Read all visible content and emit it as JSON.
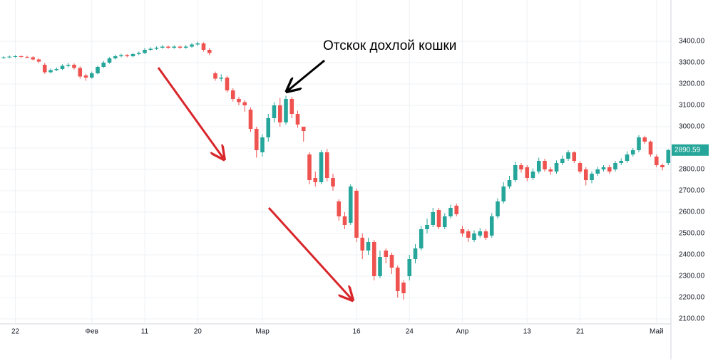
{
  "chart_data": {
    "type": "candlestick",
    "annotation": "Отскок дохлой кошки",
    "categories": [
      null,
      null,
      "22",
      null,
      null,
      null,
      null,
      null,
      null,
      null,
      null,
      null,
      null,
      null,
      null,
      "Фев",
      null,
      null,
      null,
      null,
      null,
      null,
      null,
      null,
      "11",
      null,
      null,
      null,
      null,
      null,
      null,
      null,
      null,
      "20",
      null,
      null,
      null,
      null,
      null,
      null,
      null,
      null,
      null,
      null,
      "Мар",
      null,
      null,
      null,
      null,
      null,
      null,
      null,
      null,
      null,
      null,
      null,
      null,
      null,
      null,
      null,
      "16",
      null,
      null,
      null,
      null,
      null,
      null,
      null,
      null,
      "24",
      null,
      null,
      null,
      null,
      null,
      null,
      null,
      null,
      "Апр",
      null,
      null,
      null,
      null,
      null,
      null,
      null,
      null,
      null,
      null,
      "13",
      null,
      null,
      null,
      null,
      null,
      null,
      null,
      null,
      "21",
      null,
      null,
      null,
      null,
      null,
      null,
      null,
      null,
      null,
      null,
      null,
      null,
      "Май",
      null,
      null
    ],
    "open": [
      3322,
      3325,
      3328,
      3330,
      3327,
      3325,
      3315,
      3290,
      3255,
      3265,
      3270,
      3285,
      3290,
      3275,
      3240,
      3230,
      3250,
      3280,
      3300,
      3320,
      3330,
      3335,
      3330,
      3340,
      3345,
      3360,
      3365,
      3370,
      3375,
      3370,
      3375,
      3370,
      3375,
      3385,
      3390,
      3360,
      3250,
      3225,
      3230,
      3170,
      3130,
      3115,
      3080,
      2990,
      2880,
      2950,
      3040,
      3100,
      3020,
      3130,
      3060,
      3000,
      2870,
      2760,
      2740,
      2880,
      2760,
      2650,
      2580,
      2550,
      2700,
      2480,
      2420,
      2460,
      2300,
      2420,
      2400,
      2340,
      2270,
      2300,
      2380,
      2430,
      2520,
      2540,
      2610,
      2530,
      2580,
      2630,
      2520,
      2510,
      2470,
      2490,
      2510,
      2490,
      2580,
      2650,
      2720,
      2750,
      2820,
      2810,
      2760,
      2790,
      2840,
      2800,
      2790,
      2830,
      2850,
      2880,
      2830,
      2800,
      2750,
      2780,
      2800,
      2810,
      2800,
      2830,
      2840,
      2870,
      2890,
      2950,
      2930,
      2860,
      2820,
      2830
    ],
    "high": [
      3330,
      3333,
      3335,
      3335,
      3332,
      3330,
      3320,
      3298,
      3272,
      3278,
      3292,
      3298,
      3296,
      3282,
      3248,
      3258,
      3286,
      3308,
      3326,
      3338,
      3342,
      3340,
      3346,
      3352,
      3368,
      3372,
      3376,
      3382,
      3380,
      3381,
      3380,
      3382,
      3392,
      3398,
      3395,
      3368,
      3258,
      3245,
      3238,
      3180,
      3140,
      3125,
      3090,
      3000,
      2965,
      3060,
      3115,
      3135,
      3145,
      3140,
      3075,
      3000,
      2880,
      2790,
      2890,
      2895,
      2780,
      2660,
      2600,
      2730,
      2710,
      2500,
      2480,
      2470,
      2420,
      2430,
      2410,
      2350,
      2280,
      2400,
      2450,
      2535,
      2570,
      2620,
      2620,
      2595,
      2635,
      2640,
      2535,
      2520,
      2515,
      2525,
      2520,
      2595,
      2665,
      2740,
      2770,
      2835,
      2830,
      2820,
      2805,
      2855,
      2850,
      2810,
      2842,
      2865,
      2890,
      2885,
      2840,
      2810,
      2790,
      2812,
      2820,
      2820,
      2840,
      2852,
      2885,
      2900,
      2960,
      2958,
      2935,
      2870,
      2828,
      2895
    ],
    "low": [
      3318,
      3321,
      3323,
      3322,
      3320,
      3310,
      3298,
      3248,
      3250,
      3260,
      3265,
      3278,
      3268,
      3225,
      3215,
      3225,
      3245,
      3275,
      3295,
      3315,
      3325,
      3325,
      3325,
      3335,
      3340,
      3355,
      3360,
      3365,
      3365,
      3365,
      3364,
      3365,
      3370,
      3378,
      3352,
      3335,
      3215,
      3212,
      3160,
      3118,
      3100,
      3070,
      2975,
      2855,
      2860,
      2930,
      3020,
      3000,
      3010,
      3040,
      2995,
      2930,
      2730,
      2720,
      2730,
      2745,
      2700,
      2560,
      2520,
      2540,
      2460,
      2380,
      2400,
      2280,
      2290,
      2360,
      2310,
      2200,
      2190,
      2280,
      2360,
      2420,
      2500,
      2530,
      2520,
      2520,
      2570,
      2580,
      2485,
      2460,
      2460,
      2480,
      2470,
      2480,
      2570,
      2640,
      2710,
      2740,
      2785,
      2745,
      2750,
      2780,
      2790,
      2775,
      2780,
      2820,
      2840,
      2830,
      2780,
      2725,
      2735,
      2770,
      2790,
      2780,
      2790,
      2820,
      2830,
      2860,
      2880,
      2920,
      2860,
      2810,
      2795,
      2820
    ],
    "close": [
      3325,
      3328,
      3330,
      3327,
      3325,
      3315,
      3305,
      3255,
      3265,
      3270,
      3285,
      3290,
      3275,
      3235,
      3230,
      3250,
      3280,
      3300,
      3320,
      3330,
      3335,
      3330,
      3340,
      3345,
      3360,
      3365,
      3370,
      3375,
      3370,
      3375,
      3370,
      3375,
      3385,
      3390,
      3360,
      3345,
      3225,
      3230,
      3170,
      3130,
      3115,
      3100,
      2990,
      2890,
      2950,
      3040,
      3100,
      3020,
      3130,
      3060,
      3010,
      2980,
      2750,
      2740,
      2880,
      2760,
      2720,
      2580,
      2540,
      2720,
      2480,
      2420,
      2460,
      2300,
      2390,
      2390,
      2340,
      2230,
      2220,
      2380,
      2430,
      2520,
      2540,
      2600,
      2530,
      2580,
      2620,
      2590,
      2500,
      2480,
      2500,
      2510,
      2480,
      2580,
      2650,
      2720,
      2750,
      2820,
      2800,
      2760,
      2790,
      2840,
      2800,
      2790,
      2830,
      2850,
      2880,
      2840,
      2790,
      2750,
      2780,
      2800,
      2810,
      2790,
      2830,
      2840,
      2870,
      2890,
      2950,
      2930,
      2870,
      2820,
      2810,
      2890.59
    ],
    "up_color": "#26a69a",
    "down_color": "#ef5350",
    "ylim": [
      2080,
      3540
    ],
    "yticks": [
      {
        "value": 2100,
        "label": "2100.00"
      },
      {
        "value": 2200,
        "label": "2200.00"
      },
      {
        "value": 2300,
        "label": "2300.00"
      },
      {
        "value": 2400,
        "label": "2400.00"
      },
      {
        "value": 2500,
        "label": "2500.00"
      },
      {
        "value": 2600,
        "label": "2600.00"
      },
      {
        "value": 2700,
        "label": "2700.00"
      },
      {
        "value": 2800,
        "label": "2800.00"
      },
      {
        "value": 2900,
        "label": "2900.00"
      },
      {
        "value": 3000,
        "label": "3000.00"
      },
      {
        "value": 3100,
        "label": "3100.00"
      },
      {
        "value": 3200,
        "label": "3200.00"
      },
      {
        "value": 3300,
        "label": "3300.00"
      },
      {
        "value": 3400,
        "label": "3400.00"
      }
    ],
    "grid": true
  }
}
